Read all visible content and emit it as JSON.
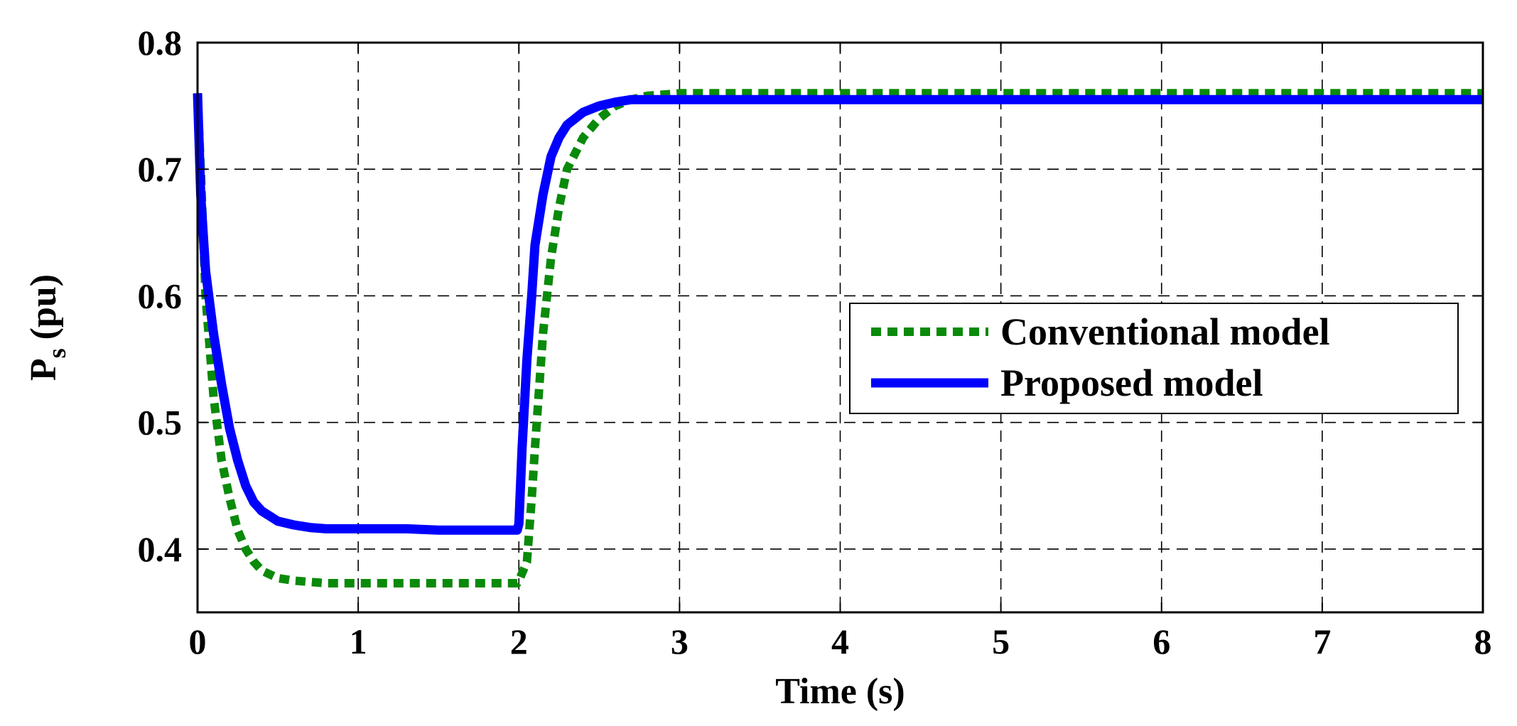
{
  "chart_data": {
    "type": "line",
    "xlabel": "Time (s)",
    "ylabel_main": "P",
    "ylabel_sub": "s",
    "ylabel_unit": "(pu)",
    "xlim": [
      0,
      8
    ],
    "ylim": [
      0.35,
      0.8
    ],
    "xticks": [
      0,
      1,
      2,
      3,
      4,
      5,
      6,
      7,
      8
    ],
    "yticks": [
      0.4,
      0.5,
      0.6,
      0.7,
      0.8
    ],
    "xtick_labels": [
      "0",
      "1",
      "2",
      "3",
      "4",
      "5",
      "6",
      "7",
      "8"
    ],
    "ytick_labels": [
      "0.4",
      "0.5",
      "0.6",
      "0.7",
      "0.8"
    ],
    "grid": true,
    "legend_position": "middle-right",
    "series": [
      {
        "name": "Conventional model",
        "color": "#0a8a0a",
        "style": "dotted",
        "x": [
          0,
          0.02,
          0.05,
          0.1,
          0.15,
          0.2,
          0.25,
          0.3,
          0.35,
          0.4,
          0.5,
          0.6,
          0.7,
          0.8,
          1.0,
          1.5,
          1.99,
          2.0,
          2.05,
          2.08,
          2.1,
          2.15,
          2.2,
          2.25,
          2.3,
          2.4,
          2.5,
          2.6,
          2.7,
          2.8,
          3.0,
          4.0,
          5.0,
          6.0,
          7.0,
          8.0
        ],
        "y": [
          0.76,
          0.7,
          0.6,
          0.52,
          0.47,
          0.44,
          0.415,
          0.4,
          0.39,
          0.383,
          0.377,
          0.375,
          0.374,
          0.373,
          0.373,
          0.373,
          0.373,
          0.375,
          0.39,
          0.44,
          0.48,
          0.57,
          0.63,
          0.67,
          0.7,
          0.725,
          0.74,
          0.75,
          0.755,
          0.758,
          0.76,
          0.76,
          0.76,
          0.76,
          0.76,
          0.76
        ]
      },
      {
        "name": "Proposed model",
        "color": "#0000ff",
        "style": "solid",
        "x": [
          0,
          0.02,
          0.05,
          0.1,
          0.15,
          0.2,
          0.25,
          0.3,
          0.35,
          0.4,
          0.5,
          0.6,
          0.7,
          0.8,
          1.0,
          1.3,
          1.5,
          1.99,
          2.0,
          2.02,
          2.05,
          2.08,
          2.1,
          2.15,
          2.2,
          2.25,
          2.3,
          2.4,
          2.5,
          2.6,
          2.7,
          2.8,
          3.0,
          4.0,
          5.0,
          6.0,
          7.0,
          8.0
        ],
        "y": [
          0.76,
          0.68,
          0.62,
          0.57,
          0.53,
          0.495,
          0.47,
          0.45,
          0.437,
          0.43,
          0.422,
          0.419,
          0.417,
          0.416,
          0.416,
          0.416,
          0.415,
          0.415,
          0.42,
          0.48,
          0.55,
          0.6,
          0.64,
          0.68,
          0.71,
          0.725,
          0.735,
          0.745,
          0.75,
          0.753,
          0.755,
          0.755,
          0.755,
          0.755,
          0.755,
          0.755,
          0.755,
          0.755
        ]
      }
    ]
  }
}
